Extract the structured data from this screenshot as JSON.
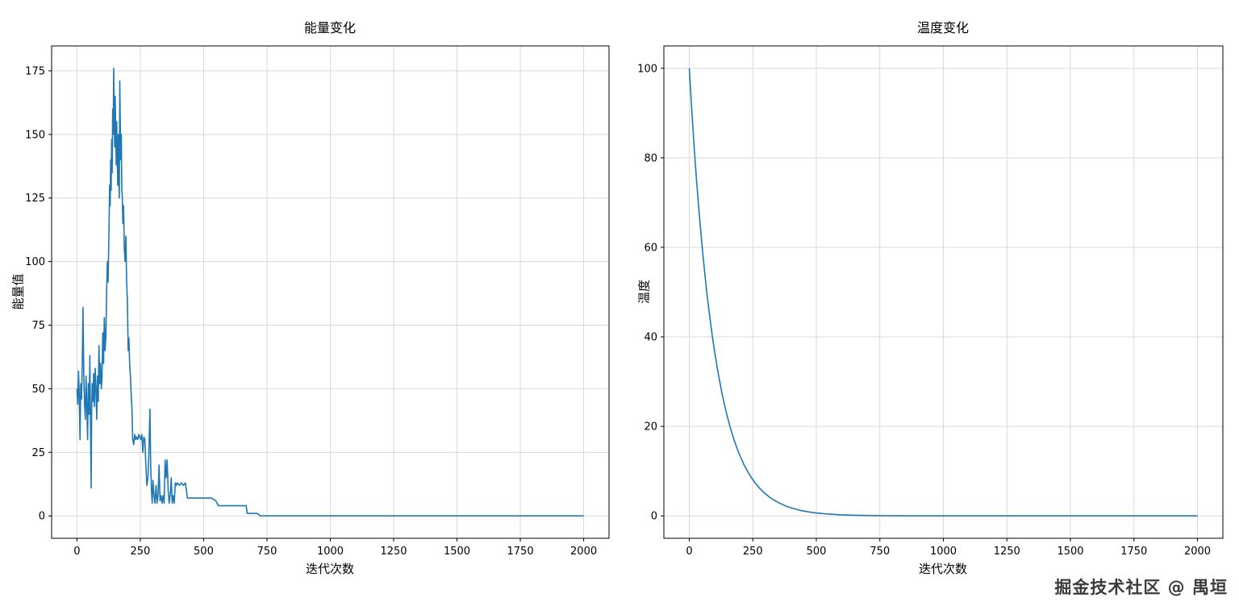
{
  "watermark": {
    "text": "掘金技术社区 @ 禺垣"
  },
  "chart_data": [
    {
      "type": "line",
      "title": "能量变化",
      "xlabel": "迭代次数",
      "ylabel": "能量值",
      "xlim": [
        -100,
        2100
      ],
      "ylim": [
        -8.8,
        184.8
      ],
      "xticks": [
        0,
        250,
        500,
        750,
        1000,
        1250,
        1500,
        1750,
        2000
      ],
      "yticks": [
        0,
        25,
        50,
        75,
        100,
        125,
        150,
        175
      ],
      "grid": true,
      "line_color": "#1f77b4",
      "series": [
        {
          "name": "能量值",
          "points": [
            [
              0,
              50
            ],
            [
              3,
              44
            ],
            [
              6,
              57
            ],
            [
              9,
              48
            ],
            [
              12,
              30
            ],
            [
              15,
              52
            ],
            [
              18,
              46
            ],
            [
              21,
              60
            ],
            [
              24,
              82
            ],
            [
              27,
              55
            ],
            [
              30,
              44
            ],
            [
              33,
              38
            ],
            [
              36,
              55
            ],
            [
              39,
              43
            ],
            [
              42,
              30
            ],
            [
              45,
              52
            ],
            [
              48,
              40
            ],
            [
              51,
              63
            ],
            [
              54,
              30
            ],
            [
              56,
              11
            ],
            [
              58,
              40
            ],
            [
              60,
              52
            ],
            [
              63,
              45
            ],
            [
              66,
              56
            ],
            [
              69,
              43
            ],
            [
              72,
              58
            ],
            [
              75,
              50
            ],
            [
              78,
              38
            ],
            [
              81,
              55
            ],
            [
              84,
              45
            ],
            [
              87,
              67
            ],
            [
              90,
              52
            ],
            [
              93,
              60
            ],
            [
              96,
              50
            ],
            [
              99,
              55
            ],
            [
              102,
              72
            ],
            [
              105,
              60
            ],
            [
              108,
              78
            ],
            [
              111,
              65
            ],
            [
              114,
              70
            ],
            [
              117,
              88
            ],
            [
              120,
              100
            ],
            [
              123,
              92
            ],
            [
              126,
              110
            ],
            [
              129,
              130
            ],
            [
              131,
              122
            ],
            [
              133,
              140
            ],
            [
              135,
              128
            ],
            [
              137,
              148
            ],
            [
              139,
              135
            ],
            [
              141,
              160
            ],
            [
              143,
              150
            ],
            [
              145,
              176
            ],
            [
              147,
              158
            ],
            [
              149,
              145
            ],
            [
              151,
              165
            ],
            [
              153,
              152
            ],
            [
              155,
              138
            ],
            [
              157,
              155
            ],
            [
              159,
              142
            ],
            [
              161,
              130
            ],
            [
              163,
              150
            ],
            [
              165,
              136
            ],
            [
              167,
              125
            ],
            [
              169,
              171
            ],
            [
              171,
              155
            ],
            [
              173,
              140
            ],
            [
              175,
              150
            ],
            [
              177,
              128
            ],
            [
              179,
              126
            ],
            [
              181,
              115
            ],
            [
              184,
              122
            ],
            [
              187,
              105
            ],
            [
              190,
              100
            ],
            [
              193,
              110
            ],
            [
              196,
              92
            ],
            [
              199,
              85
            ],
            [
              202,
              65
            ],
            [
              205,
              70
            ],
            [
              208,
              60
            ],
            [
              211,
              55
            ],
            [
              214,
              48
            ],
            [
              217,
              42
            ],
            [
              220,
              30
            ],
            [
              224,
              28
            ],
            [
              228,
              32
            ],
            [
              232,
              30
            ],
            [
              236,
              31
            ],
            [
              240,
              30
            ],
            [
              244,
              32
            ],
            [
              248,
              31
            ],
            [
              252,
              30
            ],
            [
              256,
              32
            ],
            [
              260,
              25
            ],
            [
              264,
              31
            ],
            [
              268,
              30
            ],
            [
              272,
              20
            ],
            [
              276,
              12
            ],
            [
              280,
              15
            ],
            [
              284,
              25
            ],
            [
              288,
              42
            ],
            [
              291,
              20
            ],
            [
              294,
              10
            ],
            [
              297,
              5
            ],
            [
              300,
              14
            ],
            [
              304,
              8
            ],
            [
              308,
              5
            ],
            [
              312,
              12
            ],
            [
              316,
              5
            ],
            [
              320,
              8
            ],
            [
              324,
              20
            ],
            [
              328,
              6
            ],
            [
              332,
              8
            ],
            [
              336,
              5
            ],
            [
              340,
              8
            ],
            [
              344,
              5
            ],
            [
              348,
              22
            ],
            [
              352,
              15
            ],
            [
              356,
              22
            ],
            [
              360,
              10
            ],
            [
              364,
              5
            ],
            [
              368,
              8
            ],
            [
              372,
              15
            ],
            [
              376,
              5
            ],
            [
              380,
              8
            ],
            [
              384,
              5
            ],
            [
              388,
              13
            ],
            [
              392,
              12
            ],
            [
              396,
              13
            ],
            [
              404,
              12
            ],
            [
              412,
              13
            ],
            [
              420,
              12
            ],
            [
              428,
              13
            ],
            [
              436,
              7
            ],
            [
              450,
              7
            ],
            [
              470,
              7
            ],
            [
              490,
              7
            ],
            [
              510,
              7
            ],
            [
              530,
              7
            ],
            [
              548,
              6
            ],
            [
              558,
              4
            ],
            [
              580,
              4
            ],
            [
              610,
              4
            ],
            [
              640,
              4
            ],
            [
              668,
              4
            ],
            [
              672,
              1
            ],
            [
              690,
              1
            ],
            [
              710,
              1
            ],
            [
              725,
              0
            ],
            [
              750,
              0
            ],
            [
              800,
              0
            ],
            [
              900,
              0
            ],
            [
              1000,
              0
            ],
            [
              1100,
              0
            ],
            [
              1200,
              0
            ],
            [
              1300,
              0
            ],
            [
              1400,
              0
            ],
            [
              1500,
              0
            ],
            [
              1600,
              0
            ],
            [
              1700,
              0
            ],
            [
              1800,
              0
            ],
            [
              1900,
              0
            ],
            [
              2000,
              0
            ]
          ]
        }
      ]
    },
    {
      "type": "line",
      "title": "温度变化",
      "xlabel": "迭代次数",
      "ylabel": "温度",
      "xlim": [
        -100,
        2100
      ],
      "ylim": [
        -5,
        105
      ],
      "xticks": [
        0,
        250,
        500,
        750,
        1000,
        1250,
        1500,
        1750,
        2000
      ],
      "yticks": [
        0,
        20,
        40,
        60,
        80,
        100
      ],
      "grid": true,
      "line_color": "#1f77b4",
      "series": [
        {
          "name": "温度",
          "points": [
            [
              0,
              100
            ],
            [
              10,
              90.4
            ],
            [
              20,
              81.8
            ],
            [
              30,
              74
            ],
            [
              40,
              66.9
            ],
            [
              50,
              60.5
            ],
            [
              60,
              54.7
            ],
            [
              70,
              49.5
            ],
            [
              80,
              44.8
            ],
            [
              90,
              40.5
            ],
            [
              100,
              36.6
            ],
            [
              110,
              33.1
            ],
            [
              120,
              30
            ],
            [
              130,
              27.1
            ],
            [
              140,
              24.5
            ],
            [
              150,
              22.1
            ],
            [
              160,
              20
            ],
            [
              170,
              18.1
            ],
            [
              180,
              16.4
            ],
            [
              190,
              14.8
            ],
            [
              200,
              13.4
            ],
            [
              215,
              11.5
            ],
            [
              230,
              9.9
            ],
            [
              245,
              8.5
            ],
            [
              260,
              7.3
            ],
            [
              275,
              6.3
            ],
            [
              290,
              5.4
            ],
            [
              305,
              4.7
            ],
            [
              320,
              4
            ],
            [
              335,
              3.5
            ],
            [
              350,
              3
            ],
            [
              365,
              2.6
            ],
            [
              380,
              2.2
            ],
            [
              400,
              1.8
            ],
            [
              420,
              1.5
            ],
            [
              440,
              1.2
            ],
            [
              460,
              1
            ],
            [
              480,
              0.8
            ],
            [
              500,
              0.66
            ],
            [
              530,
              0.49
            ],
            [
              560,
              0.36
            ],
            [
              600,
              0.24
            ],
            [
              650,
              0.15
            ],
            [
              700,
              0.09
            ],
            [
              750,
              0.05
            ],
            [
              800,
              0.03
            ],
            [
              900,
              0.012
            ],
            [
              1000,
              0.004
            ],
            [
              1150,
              0.001
            ],
            [
              1300,
              0
            ],
            [
              1500,
              0
            ],
            [
              1700,
              0
            ],
            [
              2000,
              0
            ]
          ]
        }
      ]
    }
  ]
}
